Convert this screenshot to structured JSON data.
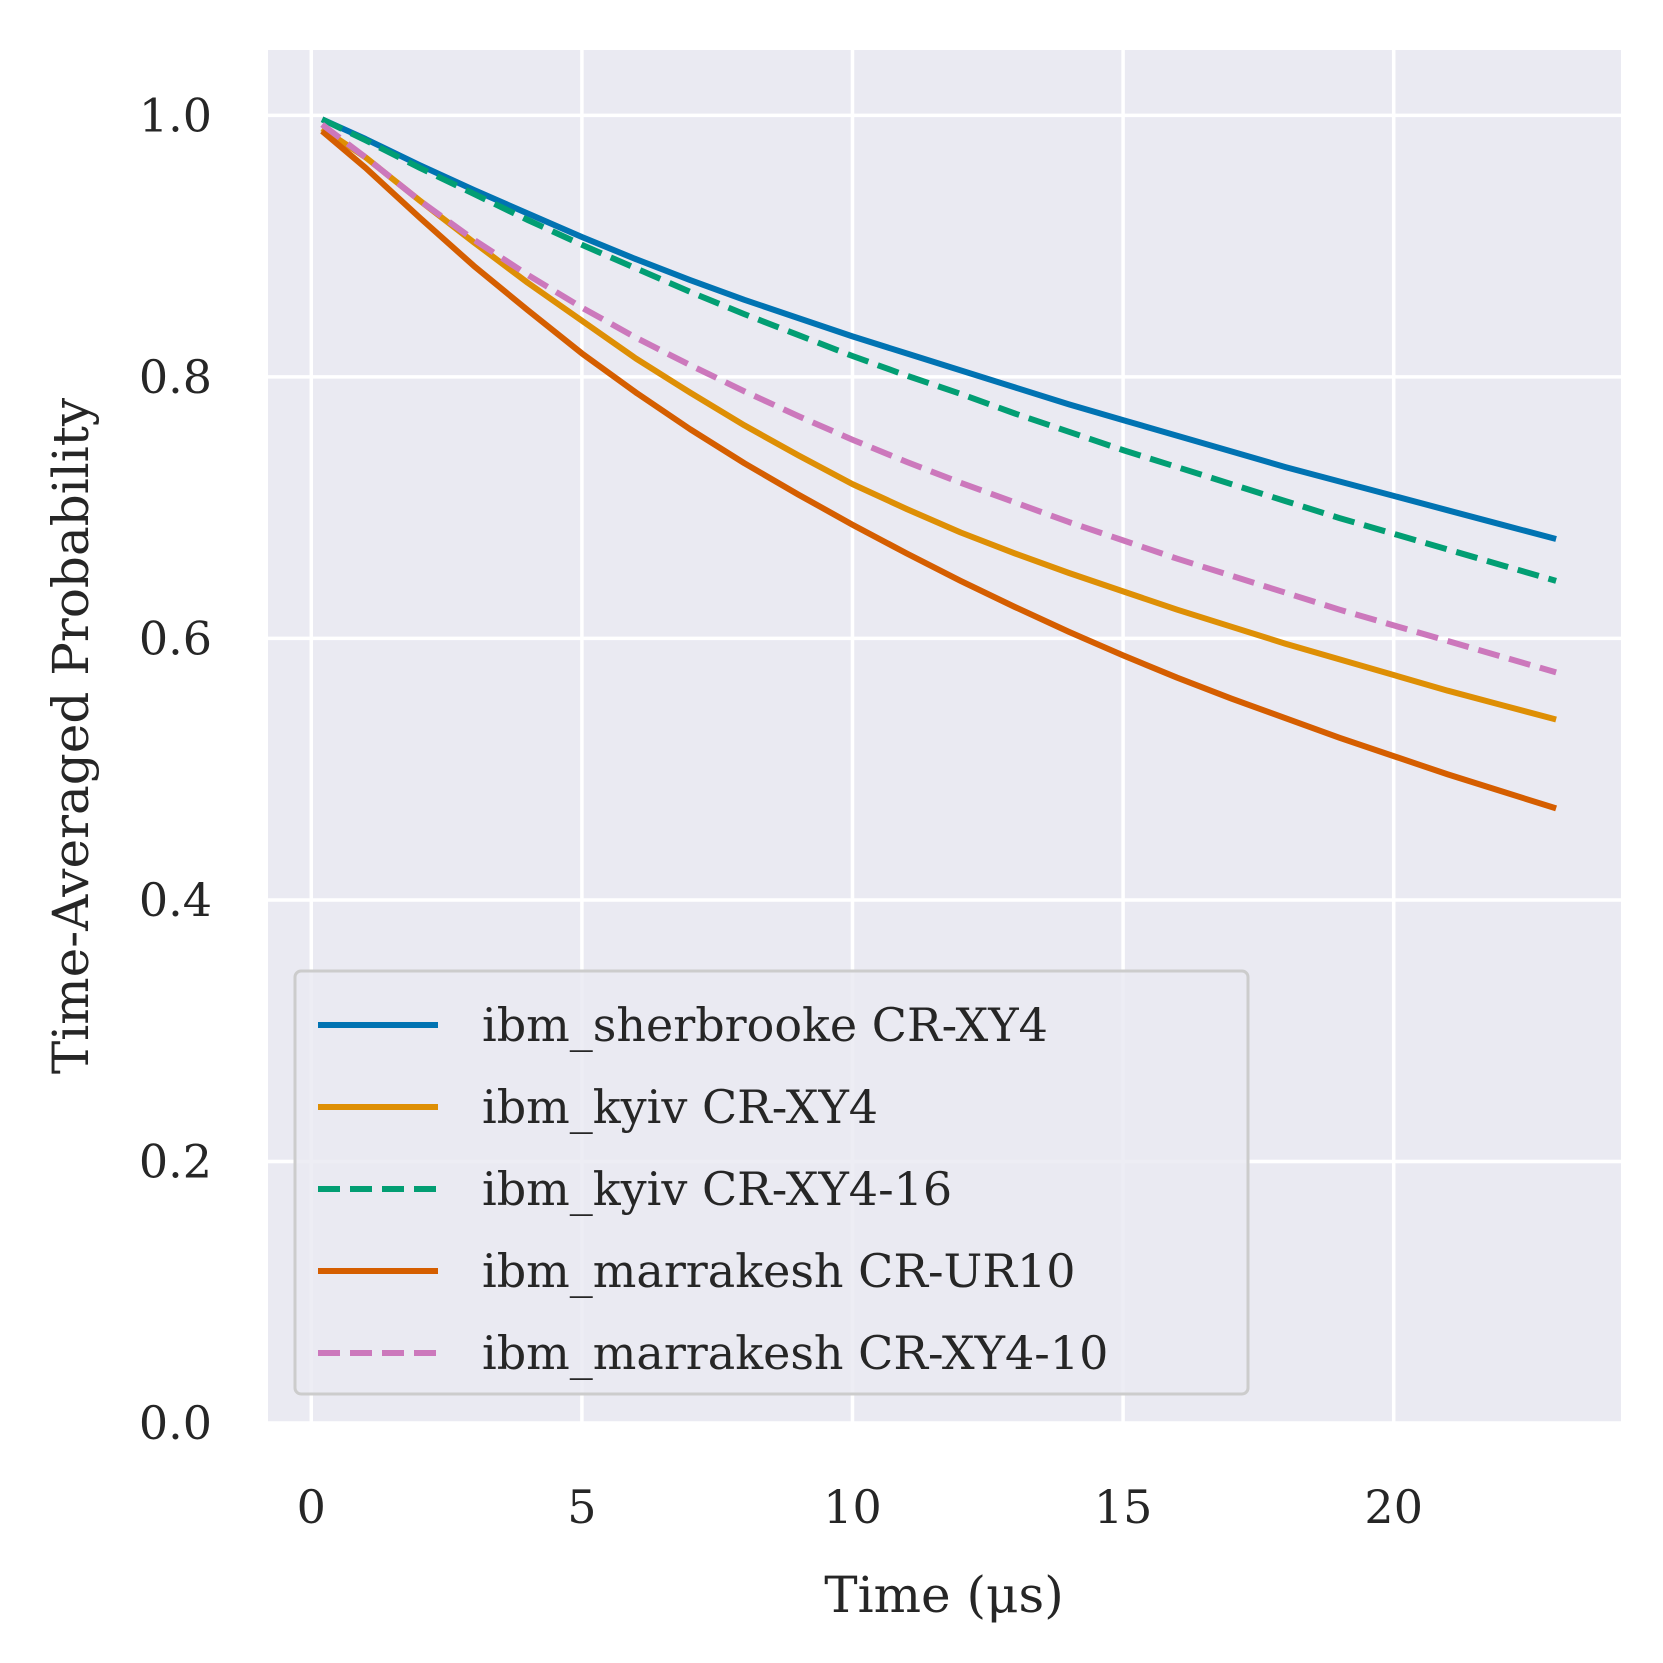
{
  "chart_data": {
    "type": "line",
    "title": "",
    "xlabel": "Time (μs)",
    "ylabel": "Time-Averaged Probability",
    "xlim": [
      -0.8,
      24.2
    ],
    "ylim": [
      0.0,
      1.05
    ],
    "xticks": [
      0,
      5,
      10,
      15,
      20
    ],
    "xtick_labels": [
      "0",
      "5",
      "10",
      "15",
      "20"
    ],
    "yticks": [
      0.0,
      0.2,
      0.4,
      0.6,
      0.8,
      1.0
    ],
    "ytick_labels": [
      "0.0",
      "0.2",
      "0.4",
      "0.6",
      "0.8",
      "1.0"
    ],
    "grid": true,
    "legend_position": "lower-left",
    "x": [
      0.2,
      1,
      2,
      3,
      4,
      5,
      6,
      7,
      8,
      9,
      10,
      11,
      12,
      13,
      14,
      15,
      16,
      17,
      18,
      19,
      20,
      21,
      22,
      23
    ],
    "series": [
      {
        "name": "ibm_sherbrooke CR-XY4",
        "color": "#0173b2",
        "dash": "solid",
        "values": [
          0.997,
          0.982,
          0.962,
          0.943,
          0.925,
          0.907,
          0.89,
          0.874,
          0.859,
          0.845,
          0.831,
          0.818,
          0.805,
          0.792,
          0.779,
          0.767,
          0.755,
          0.743,
          0.731,
          0.72,
          0.709,
          0.698,
          0.687,
          0.676
        ]
      },
      {
        "name": "ibm_kyiv CR-XY4",
        "color": "#de8f05",
        "dash": "solid",
        "values": [
          0.99,
          0.968,
          0.935,
          0.903,
          0.872,
          0.843,
          0.814,
          0.788,
          0.763,
          0.74,
          0.718,
          0.699,
          0.681,
          0.665,
          0.65,
          0.636,
          0.622,
          0.609,
          0.596,
          0.584,
          0.572,
          0.56,
          0.549,
          0.538
        ]
      },
      {
        "name": "ibm_kyiv CR-XY4-16",
        "color": "#029e73",
        "dash": "dashed",
        "values": [
          0.997,
          0.981,
          0.96,
          0.94,
          0.92,
          0.901,
          0.883,
          0.865,
          0.848,
          0.832,
          0.816,
          0.801,
          0.787,
          0.772,
          0.758,
          0.744,
          0.731,
          0.718,
          0.705,
          0.692,
          0.68,
          0.668,
          0.656,
          0.644
        ]
      },
      {
        "name": "ibm_marrakesh CR-UR10",
        "color": "#d55e00",
        "dash": "solid",
        "values": [
          0.988,
          0.96,
          0.922,
          0.885,
          0.851,
          0.818,
          0.788,
          0.76,
          0.734,
          0.71,
          0.687,
          0.665,
          0.644,
          0.624,
          0.605,
          0.587,
          0.57,
          0.554,
          0.539,
          0.524,
          0.51,
          0.496,
          0.483,
          0.47
        ]
      },
      {
        "name": "ibm_marrakesh CR-XY4-10",
        "color": "#cc78bc",
        "dash": "dashed",
        "values": [
          0.993,
          0.968,
          0.935,
          0.905,
          0.878,
          0.853,
          0.83,
          0.809,
          0.789,
          0.77,
          0.752,
          0.735,
          0.719,
          0.704,
          0.689,
          0.675,
          0.661,
          0.648,
          0.635,
          0.622,
          0.61,
          0.598,
          0.586,
          0.574
        ]
      }
    ]
  }
}
